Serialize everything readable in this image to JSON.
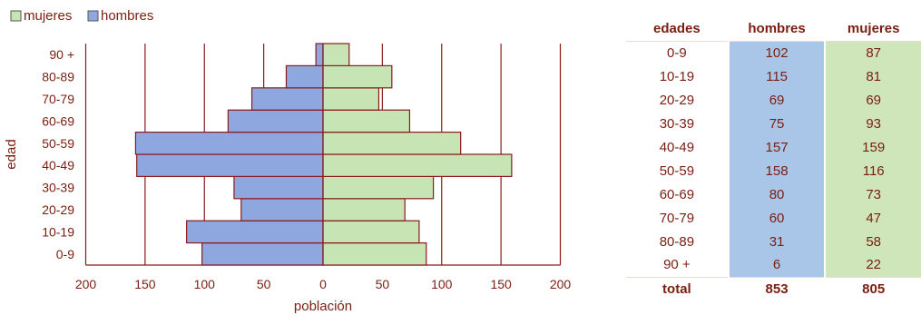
{
  "chart_data": {
    "type": "bar",
    "orientation": "horizontal-population-pyramid",
    "categories": [
      "0-9",
      "10-19",
      "20-29",
      "30-39",
      "40-49",
      "50-59",
      "60-69",
      "70-79",
      "80-89",
      "90 +"
    ],
    "series": [
      {
        "name": "hombres",
        "values": [
          102,
          115,
          69,
          75,
          157,
          158,
          80,
          60,
          31,
          6
        ],
        "color": "#8ea8df"
      },
      {
        "name": "mujeres",
        "values": [
          87,
          81,
          69,
          93,
          159,
          116,
          73,
          47,
          58,
          22
        ],
        "color": "#c6e4b4"
      }
    ],
    "xlabel": "población",
    "ylabel": "edad",
    "xlim": [
      -200,
      200
    ],
    "xticks": [
      200,
      150,
      100,
      50,
      0,
      50,
      100,
      150,
      200
    ],
    "legend": [
      "mujeres",
      "hombres"
    ],
    "legend_position": "top-left",
    "grid": "vertical",
    "bar_edge_color": "#8b1a1a"
  },
  "table": {
    "headers": [
      "edades",
      "hombres",
      "mujeres"
    ],
    "rows": [
      [
        "0-9",
        "102",
        "87"
      ],
      [
        "10-19",
        "115",
        "81"
      ],
      [
        "20-29",
        "69",
        "69"
      ],
      [
        "30-39",
        "75",
        "93"
      ],
      [
        "40-49",
        "157",
        "159"
      ],
      [
        "50-59",
        "158",
        "116"
      ],
      [
        "60-69",
        "80",
        "73"
      ],
      [
        "70-79",
        "60",
        "47"
      ],
      [
        "80-89",
        "31",
        "58"
      ],
      [
        "90 +",
        "6",
        "22"
      ]
    ],
    "total": [
      "total",
      "853",
      "805"
    ]
  }
}
